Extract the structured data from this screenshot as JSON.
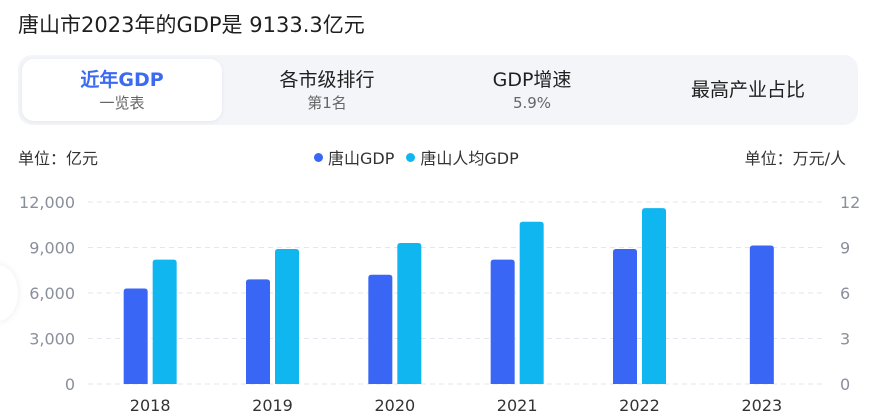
{
  "headline": {
    "prefix": "唐山市2023年的GDP是",
    "value": "9133.3",
    "unit": "亿元"
  },
  "tabs": [
    {
      "label": "近年GDP",
      "sub": "一览表",
      "active": true
    },
    {
      "label": "各市级排行",
      "sub": "第1名",
      "active": false
    },
    {
      "label": "GDP增速",
      "sub": "5.9%",
      "active": false
    },
    {
      "label": "最高产业占比",
      "sub": "",
      "active": false
    }
  ],
  "units": {
    "left": "单位：亿元",
    "right": "单位：万元/人"
  },
  "colors": {
    "gdp": "#3a66f5",
    "per_capita": "#10b6ef",
    "active_tab": "#3c6af0",
    "axis_text": "#8a8f9c"
  },
  "chart_data": {
    "type": "bar",
    "categories": [
      "2018",
      "2019",
      "2020",
      "2021",
      "2022",
      "2023"
    ],
    "series": [
      {
        "name": "唐山GDP",
        "axis": "left",
        "values": [
          6300,
          6900,
          7200,
          8200,
          8900,
          9133.3
        ]
      },
      {
        "name": "唐山人均GDP",
        "axis": "right",
        "values": [
          8.2,
          8.9,
          9.3,
          10.7,
          11.6,
          null
        ]
      }
    ],
    "y_left": {
      "range": [
        0,
        12000
      ],
      "ticks": [
        "0",
        "3,000",
        "6,000",
        "9,000",
        "12,000"
      ],
      "tick_values": [
        0,
        3000,
        6000,
        9000,
        12000
      ]
    },
    "y_right": {
      "range": [
        0,
        12
      ],
      "ticks": [
        "0",
        "3",
        "6",
        "9",
        "12"
      ],
      "tick_values": [
        0,
        3,
        6,
        9,
        12
      ]
    },
    "grid": true,
    "legend": "top-center"
  }
}
